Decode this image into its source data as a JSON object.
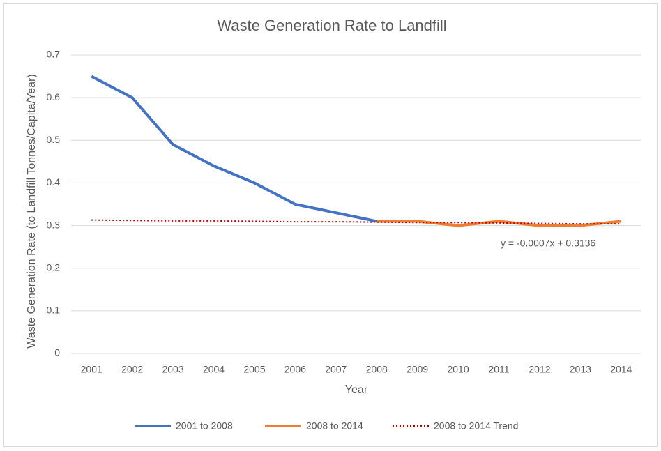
{
  "chart_data": {
    "type": "line",
    "title": "Waste Generation Rate to Landfill",
    "x_label": "Year",
    "y_label": "Waste Generation Rate (to Landfill Tonnes/Capita/Year)",
    "categories": [
      "2001",
      "2002",
      "2003",
      "2004",
      "2005",
      "2006",
      "2007",
      "2008",
      "2009",
      "2010",
      "2011",
      "2012",
      "2013",
      "2014"
    ],
    "series": [
      {
        "name": "2001 to 2008",
        "color": "#4472c4",
        "style": "solid",
        "values": [
          0.65,
          0.6,
          0.49,
          0.44,
          0.4,
          0.35,
          0.33,
          0.31,
          null,
          null,
          null,
          null,
          null,
          null
        ]
      },
      {
        "name": "2008 to 2014",
        "color": "#ed7d31",
        "style": "solid",
        "values": [
          null,
          null,
          null,
          null,
          null,
          null,
          null,
          0.31,
          0.31,
          0.3,
          0.31,
          0.3,
          0.3,
          0.31
        ]
      },
      {
        "name": "2008 to 2014 Trend",
        "color": "#c00000",
        "style": "dotted",
        "values": [
          0.313,
          0.312,
          0.311,
          0.311,
          0.31,
          0.309,
          0.309,
          0.308,
          0.307,
          0.307,
          0.306,
          0.305,
          0.304,
          0.304
        ]
      }
    ],
    "annotation": "y = -0.0007x + 0.3136",
    "ylim": [
      0,
      0.7
    ],
    "yticks": [
      0,
      0.1,
      0.2,
      0.3,
      0.4,
      0.5,
      0.6,
      0.7
    ],
    "grid": true,
    "legend": "bottom"
  }
}
